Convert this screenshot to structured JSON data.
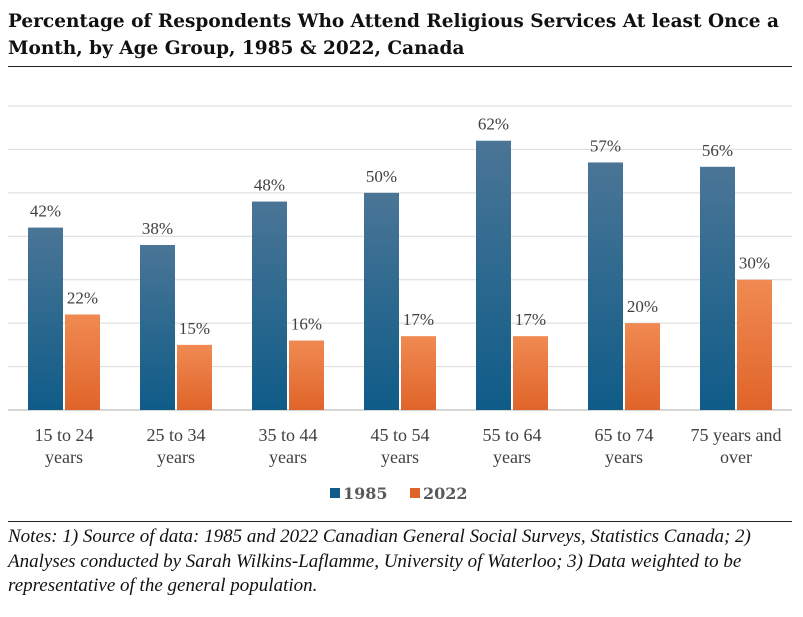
{
  "chart_data": {
    "type": "bar",
    "title": "Percentage of Respondents Who Attend Religious Services At least Once a Month, by Age Group, 1985 & 2022, Canada",
    "categories": [
      [
        "15 to 24",
        "years"
      ],
      [
        "25 to 34",
        "years"
      ],
      [
        "35 to 44",
        "years"
      ],
      [
        "45 to 54",
        "years"
      ],
      [
        "55 to 64",
        "years"
      ],
      [
        "65 to 74",
        "years"
      ],
      [
        "75 years and",
        "over"
      ]
    ],
    "series": [
      {
        "name": "1985",
        "values": [
          42,
          38,
          48,
          50,
          62,
          57,
          56
        ],
        "labels": [
          "42%",
          "38%",
          "48%",
          "50%",
          "62%",
          "57%",
          "56%"
        ]
      },
      {
        "name": "2022",
        "values": [
          22,
          15,
          16,
          17,
          17,
          20,
          30
        ],
        "labels": [
          "22%",
          "15%",
          "16%",
          "17%",
          "17%",
          "20%",
          "30%"
        ]
      }
    ],
    "xlabel": "",
    "ylabel": "",
    "ylim": [
      0,
      70
    ],
    "grid": true,
    "legend": "bottom-center"
  },
  "colors": {
    "series_1985_top": "#4a7596",
    "series_1985_bottom": "#0f5c88",
    "series_2022_top": "#f08a52",
    "series_2022_bottom": "#e0642a",
    "gridline": "#d9d9d9",
    "axis": "#bfbfbf"
  },
  "notes": "Notes: 1) Source of data: 1985 and 2022 Canadian General Social Surveys, Statistics Canada; 2) Analyses conducted by Sarah Wilkins-Laflamme, University of Waterloo; 3) Data weighted to be representative of the general population."
}
